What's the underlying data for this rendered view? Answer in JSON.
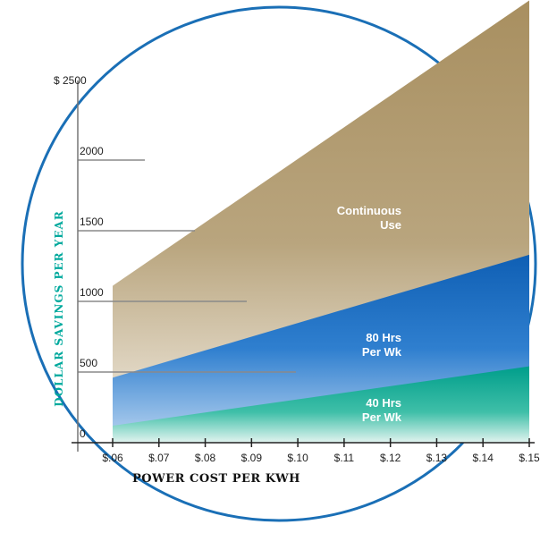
{
  "chart_data": {
    "type": "area",
    "x": [
      0.06,
      0.07,
      0.08,
      0.09,
      0.1,
      0.11,
      0.12,
      0.13,
      0.14,
      0.15
    ],
    "x_tick_labels": [
      "$.06",
      "$.07",
      "$.08",
      "$.09",
      "$.10",
      "$.11",
      "$.12",
      "$.13",
      "$.14",
      "$.15"
    ],
    "y_tick_labels": [
      "$ 2500",
      "2000",
      "1500",
      "1000",
      "500",
      "0"
    ],
    "y_ticks": [
      2500,
      2000,
      1500,
      1000,
      500,
      0
    ],
    "ylim": [
      0,
      2500
    ],
    "xlim": [
      0.06,
      0.15
    ],
    "xlabel": "POWER COST PER KWH",
    "ylabel": "DOLLAR SAVINGS PER YEAR",
    "series": [
      {
        "name": "Continuous Use",
        "label_lines": [
          "Continuous",
          "Use"
        ],
        "x": [
          0.06,
          0.15
        ],
        "values": [
          1110,
          3130
        ]
      },
      {
        "name": "80 Hrs Per Wk",
        "label_lines": [
          "80 Hrs",
          "Per Wk"
        ],
        "x": [
          0.06,
          0.15
        ],
        "values": [
          460,
          1330
        ]
      },
      {
        "name": "40 Hrs Per Wk",
        "label_lines": [
          "40 Hrs",
          "Per Wk"
        ],
        "x": [
          0.06,
          0.15
        ],
        "values": [
          120,
          540
        ]
      }
    ],
    "colors": {
      "continuous": "#a88f60",
      "hrs80": "#1166bb",
      "hrs40": "#00a08e",
      "circle": "#1a6fb6",
      "ylabel": "#00a99d",
      "axis": "#777777"
    }
  }
}
